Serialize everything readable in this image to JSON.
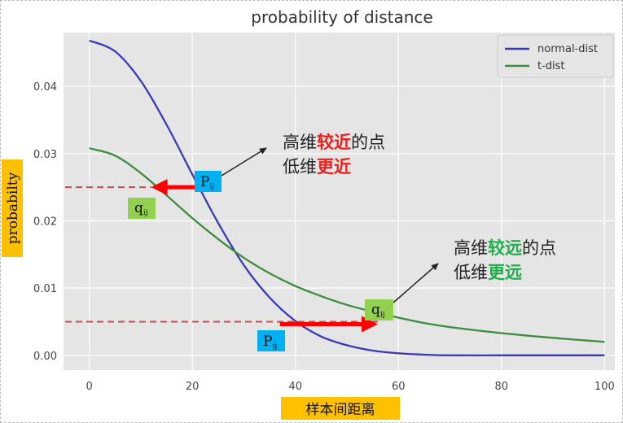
{
  "chart_data": {
    "type": "line",
    "title": "probability of distance",
    "xlabel": "样本间距离",
    "ylabel": "probabilty",
    "xlim": [
      -5,
      102
    ],
    "ylim": [
      -0.0022,
      0.048
    ],
    "xticks": [
      0,
      20,
      40,
      60,
      80,
      100
    ],
    "yticks": [
      0.0,
      0.01,
      0.02,
      0.03,
      0.04
    ],
    "xtick_labels": [
      "0",
      "20",
      "40",
      "60",
      "80",
      "100"
    ],
    "ytick_labels": [
      "0.00",
      "0.01",
      "0.02",
      "0.03",
      "0.04"
    ],
    "grid": true,
    "legend_position": "top-right",
    "series": [
      {
        "name": "normal-dist",
        "color": "#3a3ab5",
        "x": [
          0,
          5,
          10,
          15,
          20,
          25,
          30,
          35,
          40,
          45,
          50,
          55,
          60,
          65,
          70,
          80,
          90,
          100
        ],
        "y": [
          0.0468,
          0.0452,
          0.0408,
          0.0343,
          0.0269,
          0.0197,
          0.0134,
          0.0086,
          0.0051,
          0.0028,
          0.0015,
          0.0007,
          0.0003,
          0.0001,
          0.0,
          0.0,
          0.0,
          0.0
        ]
      },
      {
        "name": "t-dist",
        "color": "#3d8b3d",
        "x": [
          0,
          5,
          10,
          15,
          20,
          25,
          30,
          35,
          40,
          45,
          50,
          55,
          60,
          65,
          70,
          80,
          90,
          100
        ],
        "y": [
          0.0308,
          0.0297,
          0.0271,
          0.0238,
          0.0204,
          0.0173,
          0.0145,
          0.0122,
          0.0103,
          0.0088,
          0.0075,
          0.0065,
          0.0056,
          0.0048,
          0.0042,
          0.0033,
          0.0026,
          0.002
        ]
      }
    ],
    "annotations": {
      "near": {
        "line1_a": "高维",
        "line1_b": "较近",
        "line1_c": "的点",
        "line2_a": "低维",
        "line2_b": "更近",
        "highlight_color": "#e8201e",
        "p_label_main": "P",
        "p_label_sub": "ij",
        "q_label_main": "q",
        "q_label_sub": "ij",
        "level": 0.025,
        "p_x": 20,
        "q_x": 12
      },
      "far": {
        "line1_a": "高维",
        "line1_b": "较远",
        "line1_c": "的点",
        "line2_a": "低维",
        "line2_b": "更远",
        "highlight_color": "#1fae4a",
        "p_label_main": "P",
        "p_label_sub": "ij",
        "q_label_main": "q",
        "q_label_sub": "ij",
        "level": 0.005,
        "p_x": 37,
        "q_x": 56
      }
    },
    "colors": {
      "plot_bg": "#e5e5e5",
      "grid": "#ffffff",
      "axis_label_bg": "#ffc000",
      "p_badge_bg": "#00b0f0",
      "q_badge_bg": "#92d050",
      "arrow_red": "#ff0000",
      "dashed_red": "#c0504d"
    }
  }
}
